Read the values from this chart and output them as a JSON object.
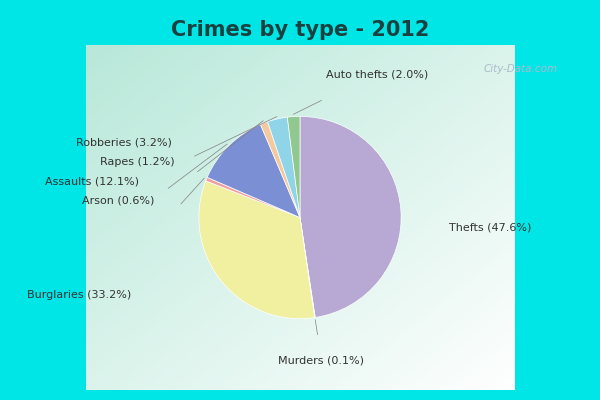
{
  "title": "Crimes by type - 2012",
  "slices": [
    {
      "label": "Thefts (47.6%)",
      "value": 47.6,
      "color": "#b8a9d4"
    },
    {
      "label": "Murders (0.1%)",
      "value": 0.1,
      "color": "#e8e8c8"
    },
    {
      "label": "Burglaries (33.2%)",
      "value": 33.2,
      "color": "#f0f0a0"
    },
    {
      "label": "Arson (0.6%)",
      "value": 0.6,
      "color": "#f0a0a0"
    },
    {
      "label": "Assaults (12.1%)",
      "value": 12.1,
      "color": "#7b8fd4"
    },
    {
      "label": "Rapes (1.2%)",
      "value": 1.2,
      "color": "#f5c9a0"
    },
    {
      "label": "Robberies (3.2%)",
      "value": 3.2,
      "color": "#90d4e8"
    },
    {
      "label": "Auto thefts (2.0%)",
      "value": 2.0,
      "color": "#90c890"
    }
  ],
  "start_angle": 90,
  "counterclock": false,
  "title_color": "#1a4040",
  "title_fontsize": 15,
  "cyan_color": "#00e5e5",
  "bg_color_tl": "#b8e8d8",
  "bg_color_br": "#e8f4ee",
  "label_fontsize": 8,
  "label_color": "#333333",
  "watermark_color": "#aabbcc",
  "label_positions": {
    "Thefts (47.6%)": [
      1.25,
      -0.08,
      "left"
    ],
    "Burglaries (33.2%)": [
      -1.42,
      -0.65,
      "right"
    ],
    "Assaults (12.1%)": [
      -1.35,
      0.3,
      "right"
    ],
    "Auto thefts (2.0%)": [
      0.22,
      1.2,
      "left"
    ],
    "Robberies (3.2%)": [
      -1.08,
      0.63,
      "right"
    ],
    "Rapes (1.2%)": [
      -1.05,
      0.47,
      "right"
    ],
    "Arson (0.6%)": [
      -1.22,
      0.14,
      "right"
    ],
    "Murders (0.1%)": [
      0.18,
      -1.2,
      "center"
    ]
  }
}
